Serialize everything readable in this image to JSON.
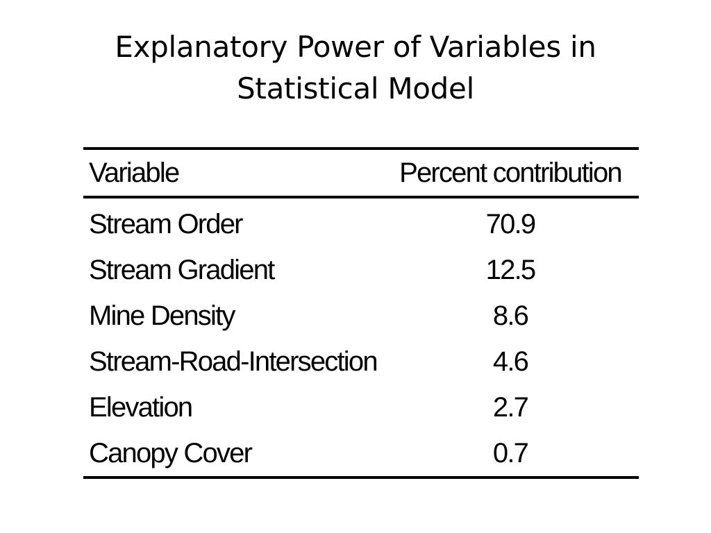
{
  "slide": {
    "title": "Explanatory Power of Variables in Statistical Model"
  },
  "table": {
    "headers": {
      "variable": "Variable",
      "percent": "Percent contribution"
    },
    "rows": [
      {
        "variable": "Stream Order",
        "percent": "70.9"
      },
      {
        "variable": "Stream Gradient",
        "percent": "12.5"
      },
      {
        "variable": "Mine Density",
        "percent": "8.6"
      },
      {
        "variable": "Stream-Road-Intersection",
        "percent": "4.6"
      },
      {
        "variable": "Elevation",
        "percent": "2.7"
      },
      {
        "variable": "Canopy Cover",
        "percent": "0.7"
      }
    ]
  }
}
